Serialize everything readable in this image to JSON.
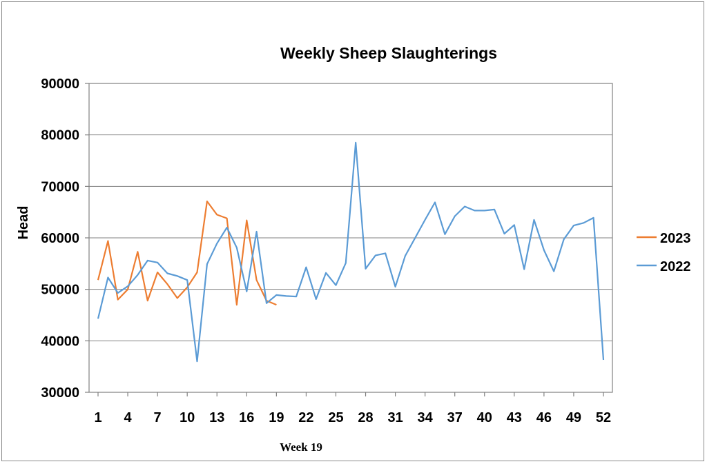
{
  "chart_data": {
    "type": "line",
    "title": "Weekly Sheep Slaughterings",
    "ylabel": "Head",
    "xlabel": "",
    "note": "Week 19",
    "ylim": [
      30000,
      90000
    ],
    "yticks": [
      30000,
      40000,
      50000,
      60000,
      70000,
      80000,
      90000
    ],
    "xlim": [
      1,
      52
    ],
    "xticks": [
      1,
      4,
      7,
      10,
      13,
      16,
      19,
      22,
      25,
      28,
      31,
      34,
      37,
      40,
      43,
      46,
      49,
      52
    ],
    "grid": true,
    "legend_position": "right",
    "series": [
      {
        "name": "2023",
        "color": "#ED7D31",
        "x": [
          1,
          2,
          3,
          4,
          5,
          6,
          7,
          8,
          9,
          10,
          11,
          12,
          13,
          14,
          15,
          16,
          17,
          18,
          19
        ],
        "values": [
          51800,
          59400,
          48000,
          50000,
          57300,
          47800,
          53300,
          51000,
          48300,
          50400,
          53300,
          67100,
          64500,
          63800,
          47000,
          63400,
          51800,
          47800,
          47000
        ]
      },
      {
        "name": "2022",
        "color": "#5B9BD5",
        "x": [
          1,
          2,
          3,
          4,
          5,
          6,
          7,
          8,
          9,
          10,
          11,
          12,
          13,
          14,
          15,
          16,
          17,
          18,
          19,
          20,
          21,
          22,
          23,
          24,
          25,
          26,
          27,
          28,
          29,
          30,
          31,
          32,
          33,
          34,
          35,
          36,
          37,
          38,
          39,
          40,
          41,
          42,
          43,
          44,
          45,
          46,
          47,
          48,
          49,
          50,
          51,
          52
        ],
        "values": [
          44300,
          52300,
          49300,
          50600,
          52800,
          55600,
          55200,
          53100,
          52600,
          51800,
          36000,
          54900,
          58900,
          62000,
          58100,
          49600,
          61200,
          47300,
          48900,
          48700,
          48600,
          54300,
          48100,
          53200,
          50800,
          55100,
          78500,
          54000,
          56600,
          57000,
          50500,
          56500,
          60000,
          63500,
          66900,
          60700,
          64200,
          66100,
          65300,
          65300,
          65500,
          60800,
          62500,
          53900,
          63500,
          57600,
          53500,
          59700,
          62400,
          62900,
          63900,
          36300
        ]
      }
    ]
  }
}
